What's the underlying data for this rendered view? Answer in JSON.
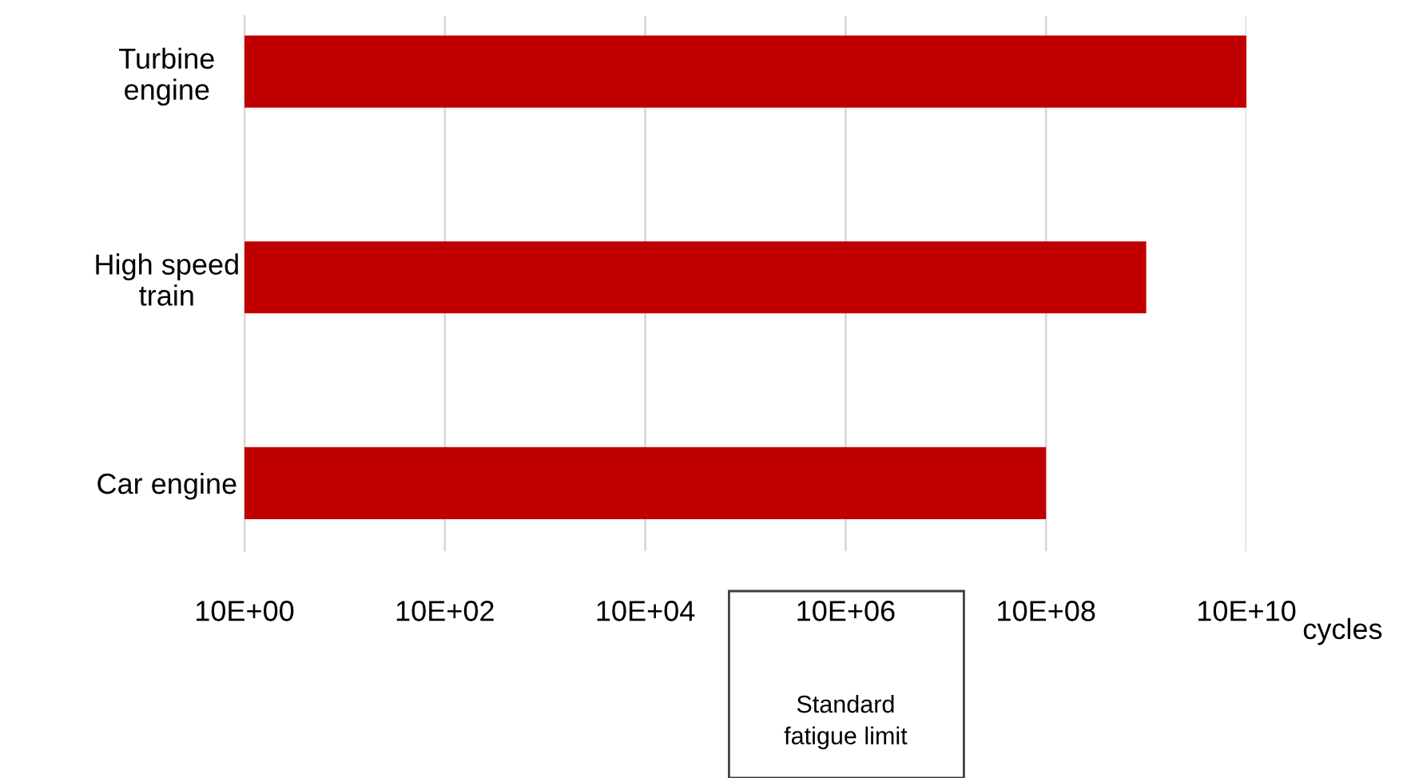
{
  "chart_data": {
    "type": "bar",
    "orientation": "horizontal",
    "log": "x",
    "categories": [
      "Turbine\nengine",
      "High speed\ntrain",
      "Car engine"
    ],
    "values": [
      100000000000,
      10000000000,
      1000000000
    ],
    "color": "#c00000",
    "xlim": [
      10,
      100000000000
    ],
    "xticks": [
      {
        "value": 10,
        "label": "10E+00"
      },
      {
        "value": 1000,
        "label": "10E+02"
      },
      {
        "value": 100000,
        "label": "10E+04"
      },
      {
        "value": 10000000,
        "label": "10E+06"
      },
      {
        "value": 1000000000,
        "label": "10E+08"
      },
      {
        "value": 100000000000,
        "label": "10E+10"
      }
    ],
    "xlabel": "cycles",
    "grid": "x",
    "annotations": [
      "Standard\nfatigue limit"
    ]
  }
}
